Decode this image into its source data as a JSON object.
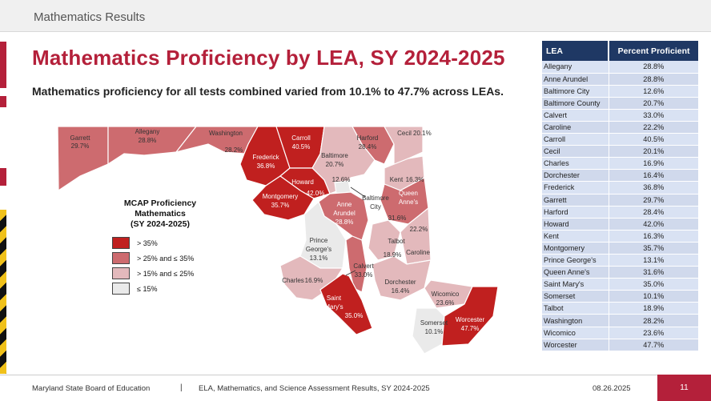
{
  "header": {
    "section_title": "Mathematics Results"
  },
  "slide": {
    "title": "Mathematics Proficiency by LEA, SY 2024-2025",
    "subtitle": "Mathematics proficiency for all tests combined varied from 10.1% to 47.7% across LEAs."
  },
  "legend": {
    "title_line1": "MCAP Proficiency",
    "title_line2": "Mathematics",
    "title_line3": "(SY 2024-2025)",
    "items": [
      {
        "label": "> 35%",
        "color": "#c0201f"
      },
      {
        "label": "> 25% and ≤ 35%",
        "color": "#cd6b6f"
      },
      {
        "label": "> 15% and ≤ 25%",
        "color": "#e3b9bc"
      },
      {
        "label": "≤ 15%",
        "color": "#eaeaea"
      }
    ]
  },
  "map_labels": {
    "garrett": {
      "name": "Garrett",
      "value": "29.7%"
    },
    "allegany": {
      "name": "Allegany",
      "value": "28.8%"
    },
    "washington": {
      "name": "Washington",
      "value": "28.2%"
    },
    "frederick": {
      "name": "Frederick",
      "value": "36.8%"
    },
    "carroll": {
      "name": "Carroll",
      "value": "40.5%"
    },
    "baltimore_county": {
      "name": "Baltimore",
      "value": "20.7%"
    },
    "harford": {
      "name": "Harford",
      "value": "28.4%"
    },
    "cecil": {
      "name": "Cecil",
      "value": "20.1%"
    },
    "howard": {
      "name": "Howard",
      "value": "42.0%"
    },
    "montgomery": {
      "name": "Montgomery",
      "value": "35.7%"
    },
    "baltimore_city": {
      "name1": "Baltimore",
      "name2": "City",
      "value": "12.6%"
    },
    "kent": {
      "name": "Kent",
      "value": "16.3%"
    },
    "queen_annes": {
      "name1": "Queen",
      "name2": "Anne's",
      "value": "31.6%"
    },
    "anne_arundel": {
      "name1": "Anne",
      "name2": "Arundel",
      "value": "28.8%"
    },
    "caroline": {
      "name": "Caroline",
      "value": "22.2%"
    },
    "prince_georges": {
      "name1": "Prince",
      "name2": "George's",
      "value": "13.1%"
    },
    "talbot": {
      "name": "Talbot",
      "value": "18.9%"
    },
    "calvert": {
      "name": "Calvert",
      "value": "33.0%"
    },
    "charles": {
      "name": "Charles",
      "value": "16.9%"
    },
    "dorchester": {
      "name": "Dorchester",
      "value": "16.4%"
    },
    "st_marys": {
      "name1": "Saint",
      "name2": "Mary's",
      "value": "35.0%"
    },
    "wicomico": {
      "name": "Wicomico",
      "value": "23.6%"
    },
    "somerset": {
      "name": "Somerset",
      "value": "10.1%"
    },
    "worcester": {
      "name": "Worcester",
      "value": "47.7%"
    }
  },
  "table": {
    "headers": [
      "LEA",
      "Percent Proficient"
    ],
    "rows": [
      [
        "Allegany",
        "28.8%"
      ],
      [
        "Anne Arundel",
        "28.8%"
      ],
      [
        "Baltimore City",
        "12.6%"
      ],
      [
        "Baltimore County",
        "20.7%"
      ],
      [
        "Calvert",
        "33.0%"
      ],
      [
        "Caroline",
        "22.2%"
      ],
      [
        "Carroll",
        "40.5%"
      ],
      [
        "Cecil",
        "20.1%"
      ],
      [
        "Charles",
        "16.9%"
      ],
      [
        "Dorchester",
        "16.4%"
      ],
      [
        "Frederick",
        "36.8%"
      ],
      [
        "Garrett",
        "29.7%"
      ],
      [
        "Harford",
        "28.4%"
      ],
      [
        "Howard",
        "42.0%"
      ],
      [
        "Kent",
        "16.3%"
      ],
      [
        "Montgomery",
        "35.7%"
      ],
      [
        "Prince George's",
        "13.1%"
      ],
      [
        "Queen Anne's",
        "31.6%"
      ],
      [
        "Saint Mary's",
        "35.0%"
      ],
      [
        "Somerset",
        "10.1%"
      ],
      [
        "Talbot",
        "18.9%"
      ],
      [
        "Washington",
        "28.2%"
      ],
      [
        "Wicomico",
        "23.6%"
      ],
      [
        "Worcester",
        "47.7%"
      ]
    ]
  },
  "footer": {
    "org": "Maryland State Board of Education",
    "separator": "|",
    "report": "ELA, Mathematics, and Science Assessment Results, SY 2024-2025",
    "date": "08.26.2025",
    "page": "11"
  },
  "colors": {
    "accent": "#b4203a",
    "navy": "#1f3864",
    "dark_red": "#c0201f",
    "mid_red": "#cd6b6f",
    "light_red": "#e3b9bc",
    "gray": "#eaeaea"
  }
}
